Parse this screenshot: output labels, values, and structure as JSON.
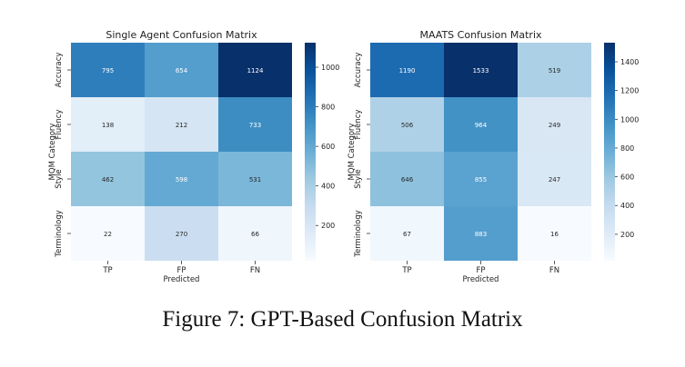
{
  "caption": "Figure 7: GPT-Based Confusion Matrix",
  "chart_data": [
    {
      "type": "heatmap",
      "title": "Single Agent Confusion Matrix",
      "xlabel": "Predicted",
      "ylabel": "MQM Category",
      "x_categories": [
        "TP",
        "FP",
        "FN"
      ],
      "y_categories": [
        "Accuracy",
        "Fluency",
        "Style",
        "Terminology"
      ],
      "values": [
        [
          795,
          654,
          1124
        ],
        [
          138,
          212,
          733
        ],
        [
          462,
          598,
          531
        ],
        [
          22,
          270,
          66
        ]
      ],
      "colormap": "Blues",
      "vmin": 22,
      "vmax": 1124,
      "colorbar_ticks": [
        200,
        400,
        600,
        800,
        1000
      ]
    },
    {
      "type": "heatmap",
      "title": "MAATS Confusion Matrix",
      "xlabel": "Predicted",
      "ylabel": "MQM Category",
      "x_categories": [
        "TP",
        "FP",
        "FN"
      ],
      "y_categories": [
        "Accuracy",
        "Fluency",
        "Style",
        "Terminology"
      ],
      "values": [
        [
          1190,
          1533,
          519
        ],
        [
          506,
          964,
          249
        ],
        [
          646,
          855,
          247
        ],
        [
          67,
          883,
          16
        ]
      ],
      "colormap": "Blues",
      "vmin": 16,
      "vmax": 1533,
      "colorbar_ticks": [
        200,
        400,
        600,
        800,
        1000,
        1200,
        1400
      ]
    }
  ]
}
